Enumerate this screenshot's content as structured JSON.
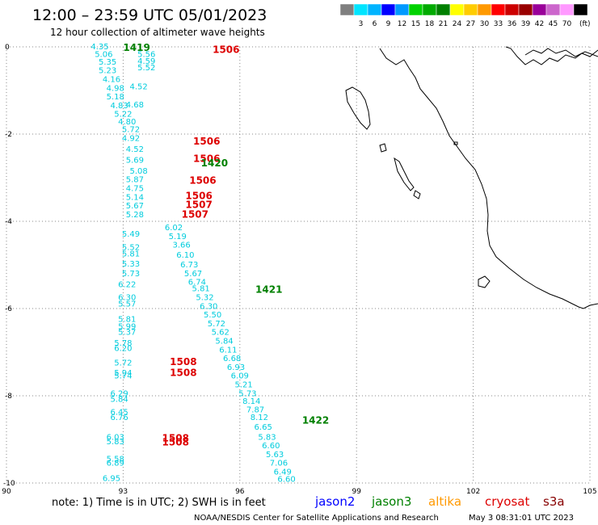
{
  "header": {
    "title": "12:00 – 23:59 UTC 05/01/2023",
    "subtitle": "12 hour collection of altimeter wave heights"
  },
  "color_scale": {
    "unit": "(ft)",
    "bins": [
      {
        "label": "",
        "color": "#7f7f7f"
      },
      {
        "label": "3",
        "color": "#00e5ff"
      },
      {
        "label": "6",
        "color": "#00b4ff"
      },
      {
        "label": "9",
        "color": "#0000ff"
      },
      {
        "label": "12",
        "color": "#0099ff"
      },
      {
        "label": "15",
        "color": "#00d200"
      },
      {
        "label": "18",
        "color": "#00aa00"
      },
      {
        "label": "21",
        "color": "#007f00"
      },
      {
        "label": "24",
        "color": "#ffff00"
      },
      {
        "label": "27",
        "color": "#ffcc00"
      },
      {
        "label": "30",
        "color": "#ff9900"
      },
      {
        "label": "33",
        "color": "#ff0000"
      },
      {
        "label": "36",
        "color": "#cc0000"
      },
      {
        "label": "39",
        "color": "#990000"
      },
      {
        "label": "42",
        "color": "#990099"
      },
      {
        "label": "45",
        "color": "#cc66cc"
      },
      {
        "label": "70",
        "color": "#ff99ff"
      },
      {
        "label": "",
        "color": "#000000"
      }
    ]
  },
  "map": {
    "lon_ticks": [
      "90",
      "93",
      "96",
      "99",
      "102",
      "105"
    ],
    "lat_ticks": [
      "0",
      "-2",
      "-4",
      "-6",
      "-8",
      "-10"
    ]
  },
  "observations": [
    {
      "v": "4.35",
      "lon": 92.4,
      "lat": 0.0
    },
    {
      "v": "5.56",
      "lon": 93.6,
      "lat": -0.18
    },
    {
      "v": "4.59",
      "lon": 93.6,
      "lat": -0.33
    },
    {
      "v": "5.52",
      "lon": 93.6,
      "lat": -0.48
    },
    {
      "v": "5.06",
      "lon": 92.5,
      "lat": -0.18
    },
    {
      "v": "5.35",
      "lon": 92.6,
      "lat": -0.35
    },
    {
      "v": "5.23",
      "lon": 92.6,
      "lat": -0.55
    },
    {
      "v": "4.16",
      "lon": 92.7,
      "lat": -0.75
    },
    {
      "v": "4.98",
      "lon": 92.8,
      "lat": -0.95
    },
    {
      "v": "4.52",
      "lon": 93.4,
      "lat": -0.92
    },
    {
      "v": "5.18",
      "lon": 92.8,
      "lat": -1.15
    },
    {
      "v": "4.83",
      "lon": 92.9,
      "lat": -1.35
    },
    {
      "v": "4.68",
      "lon": 93.3,
      "lat": -1.33
    },
    {
      "v": "5.22",
      "lon": 93.0,
      "lat": -1.55
    },
    {
      "v": "4.80",
      "lon": 93.1,
      "lat": -1.72
    },
    {
      "v": "5.72",
      "lon": 93.2,
      "lat": -1.9
    },
    {
      "v": "4.92",
      "lon": 93.2,
      "lat": -2.1
    },
    {
      "v": "4.52",
      "lon": 93.3,
      "lat": -2.35
    },
    {
      "v": "5.69",
      "lon": 93.3,
      "lat": -2.6
    },
    {
      "v": "5.08",
      "lon": 93.4,
      "lat": -2.85
    },
    {
      "v": "5.87",
      "lon": 93.3,
      "lat": -3.05
    },
    {
      "v": "4.75",
      "lon": 93.3,
      "lat": -3.25
    },
    {
      "v": "5.14",
      "lon": 93.3,
      "lat": -3.45
    },
    {
      "v": "5.67",
      "lon": 93.3,
      "lat": -3.65
    },
    {
      "v": "5.28",
      "lon": 93.3,
      "lat": -3.85
    },
    {
      "v": "6.02",
      "lon": 94.3,
      "lat": -4.15
    },
    {
      "v": "5.49",
      "lon": 93.2,
      "lat": -4.3
    },
    {
      "v": "5.19",
      "lon": 94.4,
      "lat": -4.35
    },
    {
      "v": "5.52",
      "lon": 93.2,
      "lat": -4.6
    },
    {
      "v": "3.66",
      "lon": 94.5,
      "lat": -4.55
    },
    {
      "v": "5.81",
      "lon": 93.2,
      "lat": -4.75
    },
    {
      "v": "6.10",
      "lon": 94.6,
      "lat": -4.78
    },
    {
      "v": "5.33",
      "lon": 93.2,
      "lat": -4.98
    },
    {
      "v": "6.73",
      "lon": 94.7,
      "lat": -5.0
    },
    {
      "v": "5.73",
      "lon": 93.2,
      "lat": -5.2
    },
    {
      "v": "5.67",
      "lon": 94.8,
      "lat": -5.2
    },
    {
      "v": "6.74",
      "lon": 94.9,
      "lat": -5.4
    },
    {
      "v": "6.22",
      "lon": 93.1,
      "lat": -5.45
    },
    {
      "v": "5.81",
      "lon": 95.0,
      "lat": -5.55
    },
    {
      "v": "6.30",
      "lon": 93.1,
      "lat": -5.75
    },
    {
      "v": "5.32",
      "lon": 95.1,
      "lat": -5.75
    },
    {
      "v": "5.57",
      "lon": 93.1,
      "lat": -5.9
    },
    {
      "v": "6.30",
      "lon": 95.2,
      "lat": -5.95
    },
    {
      "v": "5.50",
      "lon": 95.3,
      "lat": -6.15
    },
    {
      "v": "5.81",
      "lon": 93.1,
      "lat": -6.25
    },
    {
      "v": "5.72",
      "lon": 95.4,
      "lat": -6.35
    },
    {
      "v": "5.99",
      "lon": 93.1,
      "lat": -6.42
    },
    {
      "v": "5.37",
      "lon": 93.1,
      "lat": -6.55
    },
    {
      "v": "5.62",
      "lon": 95.5,
      "lat": -6.55
    },
    {
      "v": "5.84",
      "lon": 95.6,
      "lat": -6.75
    },
    {
      "v": "5.78",
      "lon": 93.0,
      "lat": -6.8
    },
    {
      "v": "6.20",
      "lon": 93.0,
      "lat": -6.92
    },
    {
      "v": "6.11",
      "lon": 95.7,
      "lat": -6.95
    },
    {
      "v": "6.68",
      "lon": 95.8,
      "lat": -7.15
    },
    {
      "v": "5.72",
      "lon": 93.0,
      "lat": -7.25
    },
    {
      "v": "6.93",
      "lon": 95.9,
      "lat": -7.35
    },
    {
      "v": "5.94",
      "lon": 93.0,
      "lat": -7.48
    },
    {
      "v": "5.74",
      "lon": 93.0,
      "lat": -7.55
    },
    {
      "v": "6.09",
      "lon": 96.0,
      "lat": -7.55
    },
    {
      "v": "5.21",
      "lon": 96.1,
      "lat": -7.75
    },
    {
      "v": "5.73",
      "lon": 96.2,
      "lat": -7.95
    },
    {
      "v": "6.29",
      "lon": 92.9,
      "lat": -7.95
    },
    {
      "v": "5.84",
      "lon": 92.9,
      "lat": -8.08
    },
    {
      "v": "8.14",
      "lon": 96.3,
      "lat": -8.13
    },
    {
      "v": "7.87",
      "lon": 96.4,
      "lat": -8.32
    },
    {
      "v": "6.45",
      "lon": 92.9,
      "lat": -8.38
    },
    {
      "v": "6.76",
      "lon": 92.9,
      "lat": -8.5
    },
    {
      "v": "8.12",
      "lon": 96.5,
      "lat": -8.5
    },
    {
      "v": "6.65",
      "lon": 96.6,
      "lat": -8.72
    },
    {
      "v": "6.03",
      "lon": 92.8,
      "lat": -8.95
    },
    {
      "v": "5.83",
      "lon": 96.7,
      "lat": -8.95
    },
    {
      "v": "5.83",
      "lon": 92.8,
      "lat": -9.06
    },
    {
      "v": "6.60",
      "lon": 96.8,
      "lat": -9.15
    },
    {
      "v": "5.63",
      "lon": 96.9,
      "lat": -9.35
    },
    {
      "v": "5.58",
      "lon": 92.8,
      "lat": -9.45
    },
    {
      "v": "6.89",
      "lon": 92.8,
      "lat": -9.55
    },
    {
      "v": "7.06",
      "lon": 97.0,
      "lat": -9.55
    },
    {
      "v": "6.49",
      "lon": 97.1,
      "lat": -9.75
    },
    {
      "v": "6.95",
      "lon": 92.7,
      "lat": -9.9
    },
    {
      "v": "6.60",
      "lon": 97.2,
      "lat": -9.92
    }
  ],
  "pass_times": [
    {
      "label": "1419",
      "mission": "jason3",
      "lon": 93.0,
      "lat": 0.0
    },
    {
      "label": "1506",
      "mission": "cryosat",
      "lon": 95.3,
      "lat": -0.05
    },
    {
      "label": "1506",
      "mission": "cryosat",
      "lon": 94.8,
      "lat": -2.15
    },
    {
      "label": "1506",
      "mission": "cryosat",
      "lon": 94.8,
      "lat": -2.55
    },
    {
      "label": "1420",
      "mission": "jason3",
      "lon": 95.0,
      "lat": -2.65
    },
    {
      "label": "1506",
      "mission": "cryosat",
      "lon": 94.7,
      "lat": -3.05
    },
    {
      "label": "1506",
      "mission": "cryosat",
      "lon": 94.6,
      "lat": -3.4
    },
    {
      "label": "1507",
      "mission": "cryosat",
      "lon": 94.6,
      "lat": -3.6
    },
    {
      "label": "1507",
      "mission": "cryosat",
      "lon": 94.5,
      "lat": -3.82
    },
    {
      "label": "1421",
      "mission": "jason3",
      "lon": 96.4,
      "lat": -5.55
    },
    {
      "label": "1508",
      "mission": "cryosat",
      "lon": 94.2,
      "lat": -7.2
    },
    {
      "label": "1508",
      "mission": "cryosat",
      "lon": 94.2,
      "lat": -7.45
    },
    {
      "label": "1422",
      "mission": "jason3",
      "lon": 97.6,
      "lat": -8.55
    },
    {
      "label": "1508",
      "mission": "cryosat",
      "lon": 94.0,
      "lat": -8.95
    },
    {
      "label": "1508",
      "mission": "cryosat",
      "lon": 94.0,
      "lat": -9.05
    }
  ],
  "footer": {
    "note": "note:  1) Time is in UTC;  2) SWH is in feet",
    "missions": [
      {
        "label": "jason2",
        "color": "#0000ff"
      },
      {
        "label": "jason3",
        "color": "#008000"
      },
      {
        "label": "altika",
        "color": "#ff9900"
      },
      {
        "label": "cryosat",
        "color": "#dd0000"
      },
      {
        "label": "s3a",
        "color": "#880000"
      }
    ],
    "credit": "NOAA/NESDIS Center for Satellite Applications and Research",
    "generated": "May  3 08:31:01 UTC 2023"
  },
  "colors": {
    "swh": "#00ccdd",
    "jason3": "#008000",
    "cryosat": "#dd0000",
    "coast": "#000000",
    "grid": "#888888"
  }
}
